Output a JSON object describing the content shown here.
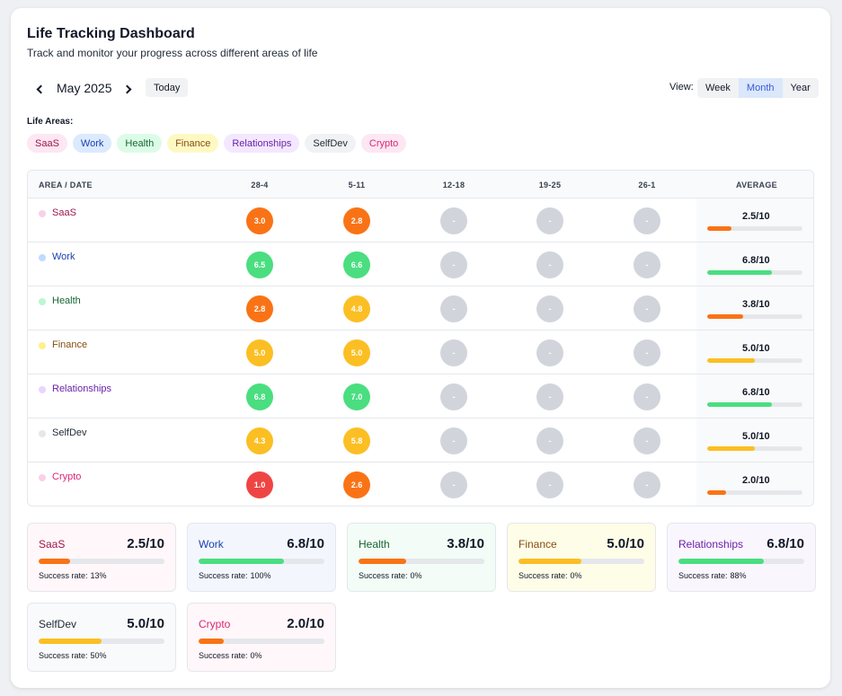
{
  "header": {
    "title": "Life Tracking Dashboard",
    "subtitle": "Track and monitor your progress across different areas of life"
  },
  "nav": {
    "month": "May 2025",
    "today_label": "Today"
  },
  "view": {
    "label": "View:",
    "options": [
      "Week",
      "Month",
      "Year"
    ],
    "selected": "Month"
  },
  "areas_label": "Life Areas:",
  "table": {
    "area_header": "AREA / DATE",
    "weeks": [
      "28-4",
      "5-11",
      "12-18",
      "19-25",
      "26-1"
    ],
    "average_header": "AVERAGE",
    "empty_marker": "-"
  },
  "colors": {
    "orange": "#f97316",
    "green": "#4ade80",
    "yellow": "#fbbf24",
    "red": "#ef4444",
    "empty": "#d1d5db"
  },
  "success_rate_label": "Success rate:",
  "areas": [
    {
      "name": "SaaS",
      "text": "#9d174d",
      "chip_bg": "#fce7f3",
      "dot": "#fbcfe8",
      "card_bg": "#fff7f9",
      "scores": [
        "3.0",
        "2.8",
        null,
        null,
        null
      ],
      "score_colors": [
        "orange",
        "orange"
      ],
      "average": "2.5/10",
      "avg_fraction": 0.25,
      "bar_color": "orange",
      "success_rate": "13%"
    },
    {
      "name": "Work",
      "text": "#1e40af",
      "chip_bg": "#dbeafe",
      "dot": "#bfdbfe",
      "card_bg": "#f3f7fd",
      "scores": [
        "6.5",
        "6.6",
        null,
        null,
        null
      ],
      "score_colors": [
        "green",
        "green"
      ],
      "average": "6.8/10",
      "avg_fraction": 0.68,
      "bar_color": "green",
      "success_rate": "100%"
    },
    {
      "name": "Health",
      "text": "#166534",
      "chip_bg": "#dcfce7",
      "dot": "#bbf7d0",
      "card_bg": "#f3fcf6",
      "scores": [
        "2.8",
        "4.8",
        null,
        null,
        null
      ],
      "score_colors": [
        "orange",
        "yellow"
      ],
      "average": "3.8/10",
      "avg_fraction": 0.38,
      "bar_color": "orange",
      "success_rate": "0%"
    },
    {
      "name": "Finance",
      "text": "#854d0e",
      "chip_bg": "#fef9c3",
      "dot": "#fef08a",
      "card_bg": "#fefde8",
      "scores": [
        "5.0",
        "5.0",
        null,
        null,
        null
      ],
      "score_colors": [
        "yellow",
        "yellow"
      ],
      "average": "5.0/10",
      "avg_fraction": 0.5,
      "bar_color": "yellow",
      "success_rate": "0%"
    },
    {
      "name": "Relationships",
      "text": "#6b21a8",
      "chip_bg": "#f3e8ff",
      "dot": "#e9d5ff",
      "card_bg": "#faf6fe",
      "scores": [
        "6.8",
        "7.0",
        null,
        null,
        null
      ],
      "score_colors": [
        "green",
        "green"
      ],
      "average": "6.8/10",
      "avg_fraction": 0.68,
      "bar_color": "green",
      "success_rate": "88%"
    },
    {
      "name": "SelfDev",
      "text": "#1f2937",
      "chip_bg": "#f1f2f4",
      "dot": "#e5e7eb",
      "card_bg": "#f9fafb",
      "scores": [
        "4.3",
        "5.8",
        null,
        null,
        null
      ],
      "score_colors": [
        "yellow",
        "yellow"
      ],
      "average": "5.0/10",
      "avg_fraction": 0.5,
      "bar_color": "yellow",
      "success_rate": "50%"
    },
    {
      "name": "Crypto",
      "text": "#db2777",
      "chip_bg": "#fce7f3",
      "dot": "#fbcfe8",
      "card_bg": "#fff7f9",
      "scores": [
        "1.0",
        "2.6",
        null,
        null,
        null
      ],
      "score_colors": [
        "red",
        "orange"
      ],
      "average": "2.0/10",
      "avg_fraction": 0.2,
      "bar_color": "orange",
      "success_rate": "0%"
    }
  ]
}
